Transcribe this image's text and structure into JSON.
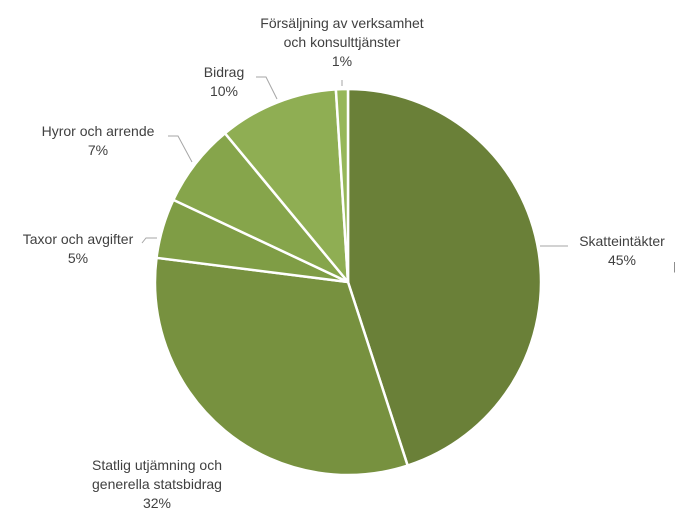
{
  "chart_data": {
    "type": "pie",
    "title": "",
    "slices": [
      {
        "label_lines": [
          "Skatteintäkter"
        ],
        "value": 45,
        "value_label": "45%",
        "color": "#6a8038"
      },
      {
        "label_lines": [
          "Statlig utjämning och",
          "generella statsbidrag"
        ],
        "value": 32,
        "value_label": "32%",
        "color": "#77913f"
      },
      {
        "label_lines": [
          "Taxor och avgifter"
        ],
        "value": 5,
        "value_label": "5%",
        "color": "#7f9d45"
      },
      {
        "label_lines": [
          "Hyror och arrende"
        ],
        "value": 7,
        "value_label": "7%",
        "color": "#86a54b"
      },
      {
        "label_lines": [
          "Bidrag"
        ],
        "value": 10,
        "value_label": "10%",
        "color": "#8fae53"
      },
      {
        "label_lines": [
          "Försäljning av verksamhet",
          "och konsulttjänster"
        ],
        "value": 1,
        "value_label": "1%",
        "color": "#96b75a"
      }
    ]
  }
}
